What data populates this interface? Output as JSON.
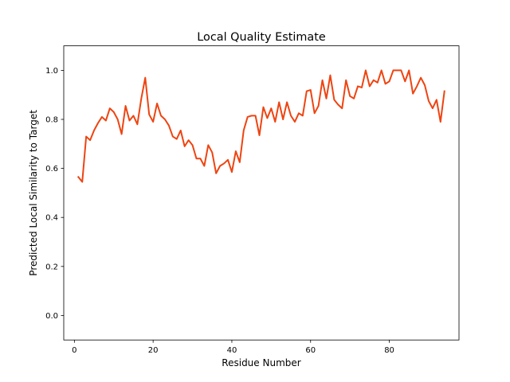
{
  "chart_data": {
    "type": "line",
    "title": "Local Quality Estimate",
    "xlabel": "Residue Number",
    "ylabel": "Predicted Local Similarity to Target",
    "xlim": [
      -2.7,
      97.7
    ],
    "ylim": [
      -0.1,
      1.1
    ],
    "xticks": [
      0,
      20,
      40,
      60,
      80
    ],
    "yticks": [
      0.0,
      0.2,
      0.4,
      0.6,
      0.8,
      1.0
    ],
    "xtick_labels": [
      "0",
      "20",
      "40",
      "60",
      "80"
    ],
    "ytick_labels": [
      "0.0",
      "0.2",
      "0.4",
      "0.6",
      "0.8",
      "1.0"
    ],
    "grid": false,
    "series": [
      {
        "color": "#ee4411",
        "x": [
          1,
          2,
          3,
          4,
          5,
          6,
          7,
          8,
          9,
          10,
          11,
          12,
          13,
          14,
          15,
          16,
          17,
          18,
          19,
          20,
          21,
          22,
          23,
          24,
          25,
          26,
          27,
          28,
          29,
          30,
          31,
          32,
          33,
          34,
          35,
          36,
          37,
          38,
          39,
          40,
          41,
          42,
          43,
          44,
          45,
          46,
          47,
          48,
          49,
          50,
          51,
          52,
          53,
          54,
          55,
          56,
          57,
          58,
          59,
          60,
          61,
          62,
          63,
          64,
          65,
          66,
          67,
          68,
          69,
          70,
          71,
          72,
          73,
          74,
          75,
          76,
          77,
          78,
          79,
          80,
          81,
          82,
          83,
          84,
          85,
          86,
          87,
          88,
          89,
          90,
          91,
          92,
          93,
          94
        ],
        "y": [
          0.565,
          0.545,
          0.73,
          0.715,
          0.755,
          0.785,
          0.81,
          0.795,
          0.845,
          0.83,
          0.8,
          0.74,
          0.855,
          0.795,
          0.815,
          0.78,
          0.885,
          0.97,
          0.82,
          0.79,
          0.865,
          0.815,
          0.8,
          0.775,
          0.73,
          0.72,
          0.755,
          0.69,
          0.715,
          0.695,
          0.64,
          0.64,
          0.61,
          0.695,
          0.665,
          0.58,
          0.61,
          0.62,
          0.635,
          0.585,
          0.67,
          0.625,
          0.755,
          0.81,
          0.815,
          0.815,
          0.735,
          0.85,
          0.805,
          0.845,
          0.79,
          0.87,
          0.8,
          0.87,
          0.815,
          0.79,
          0.825,
          0.815,
          0.915,
          0.92,
          0.825,
          0.855,
          0.96,
          0.885,
          0.98,
          0.88,
          0.86,
          0.845,
          0.96,
          0.895,
          0.885,
          0.935,
          0.93,
          1.0,
          0.935,
          0.96,
          0.95,
          1.0,
          0.945,
          0.955,
          1.0,
          1.0,
          1.0,
          0.955,
          1.0,
          0.905,
          0.935,
          0.97,
          0.94,
          0.875,
          0.845,
          0.88,
          0.79,
          0.915
        ]
      }
    ]
  }
}
